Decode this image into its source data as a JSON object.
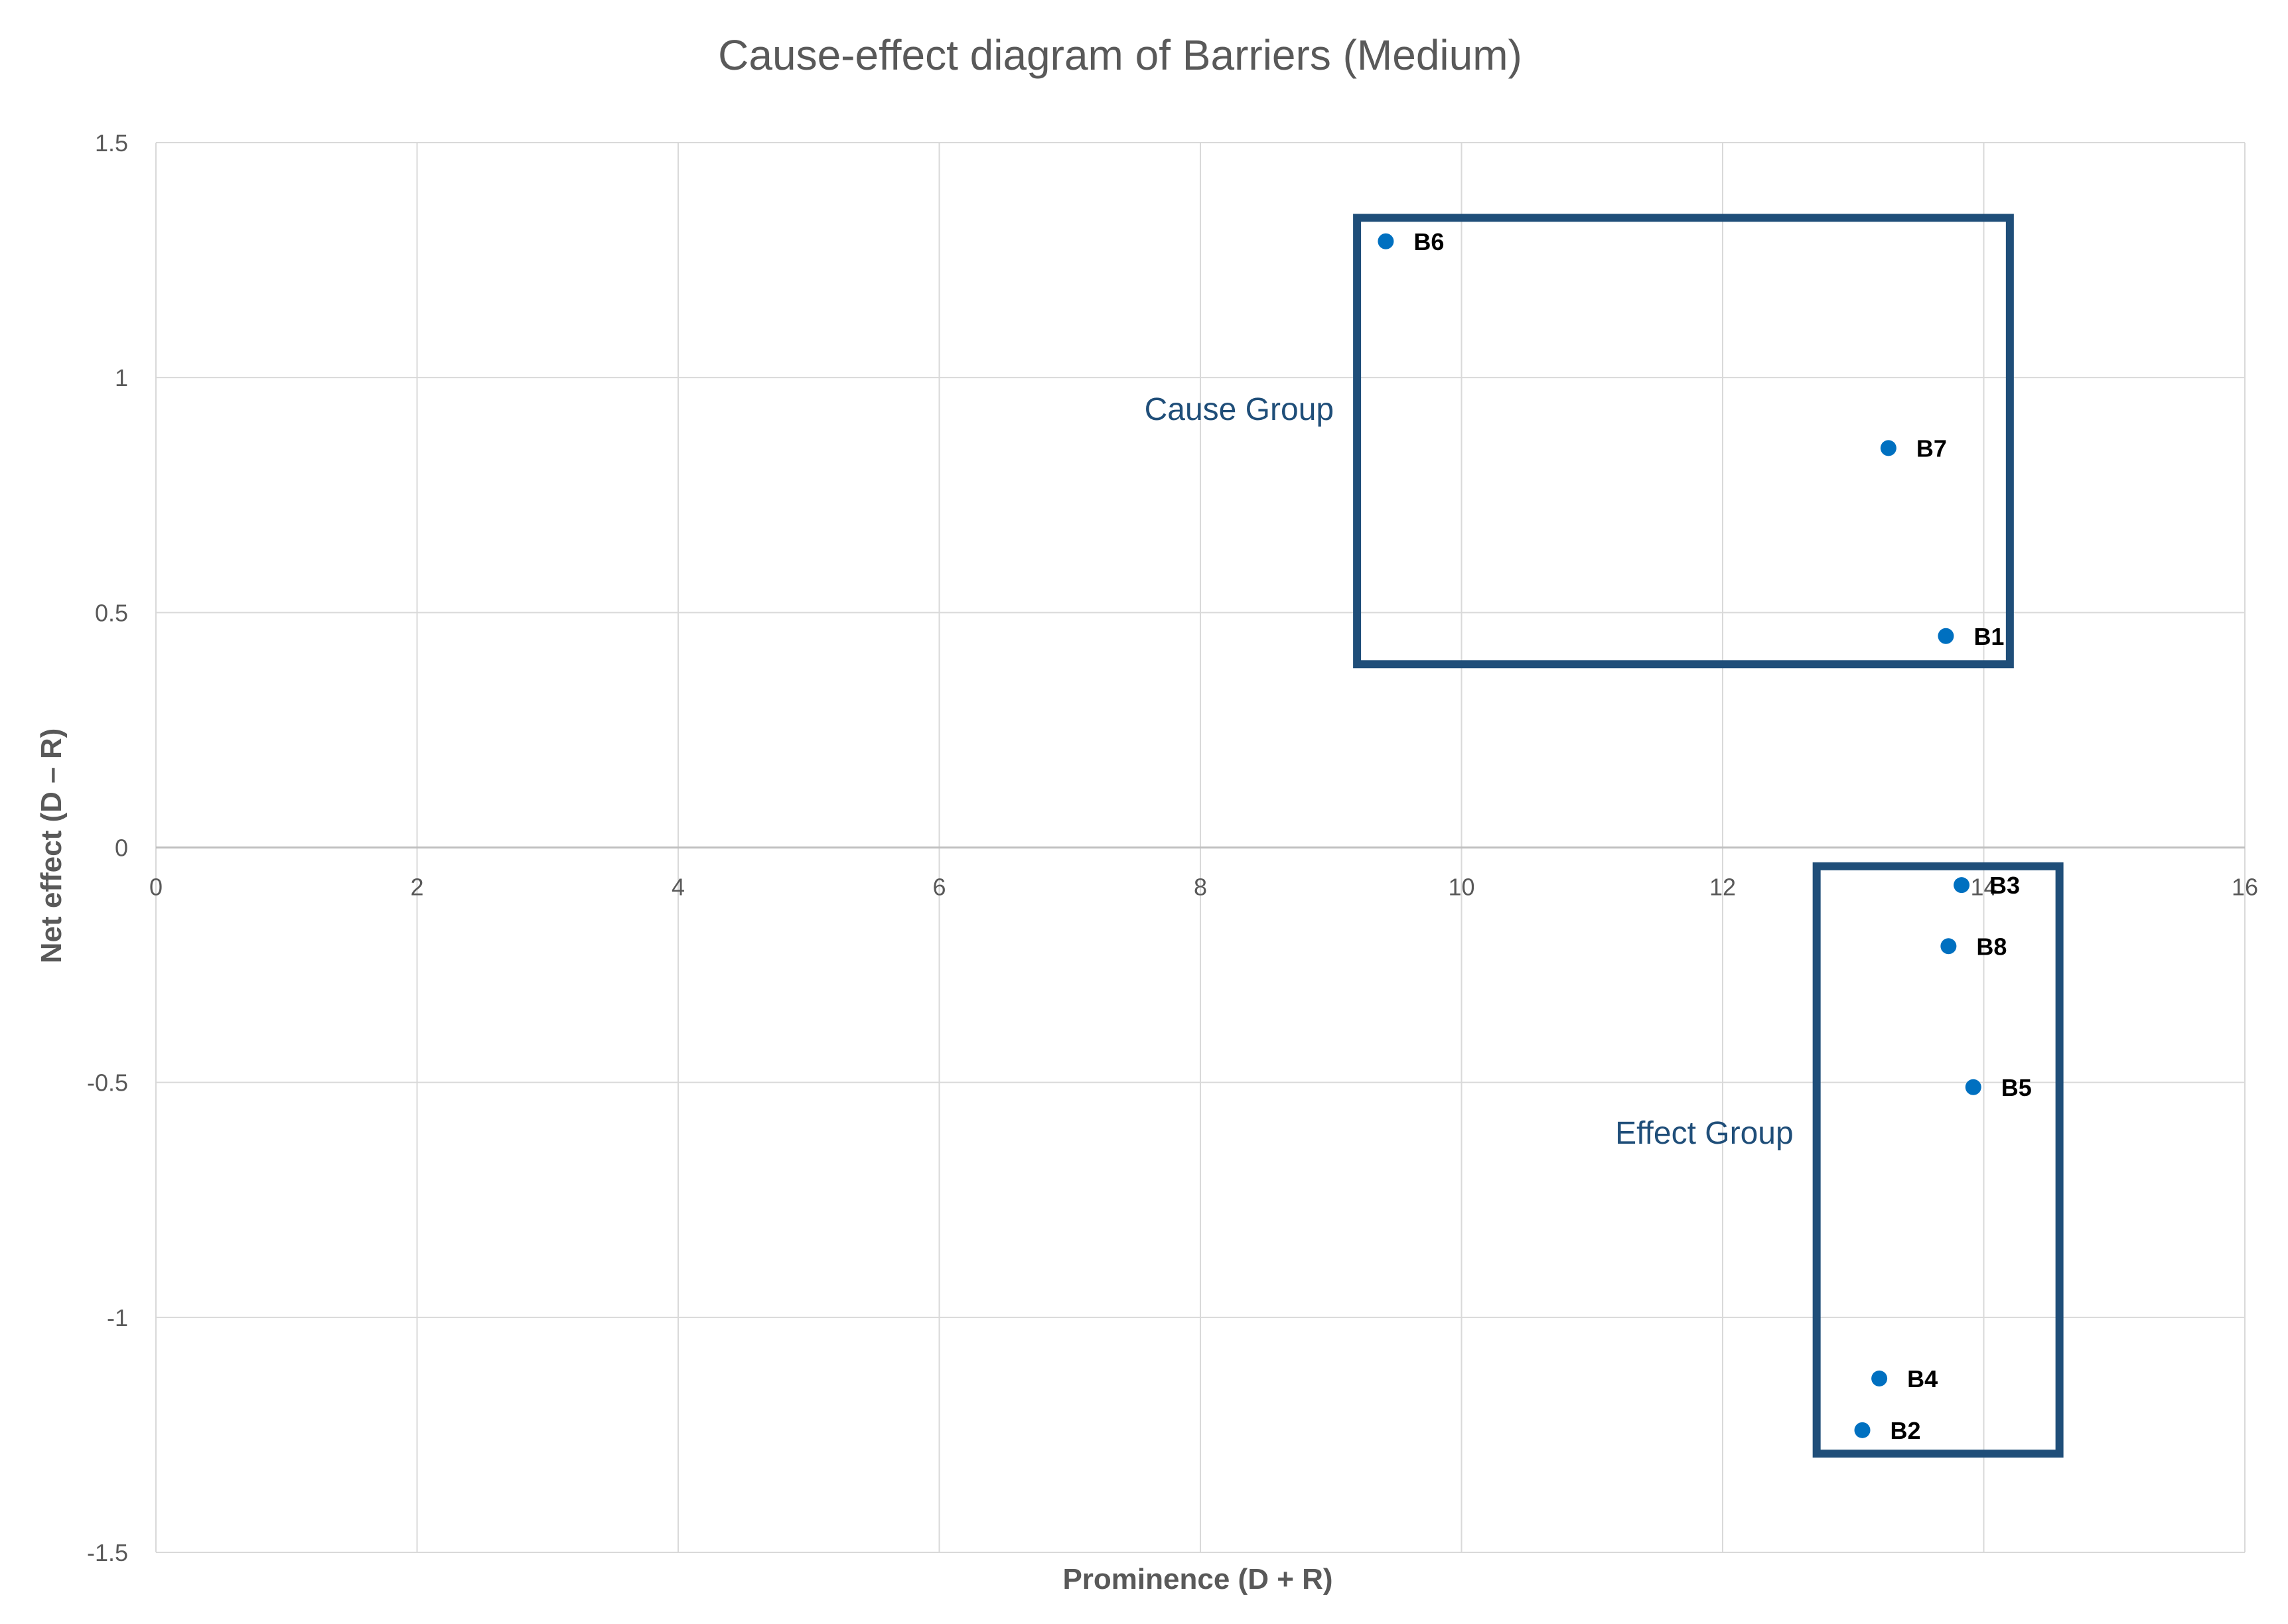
{
  "chart_data": {
    "type": "scatter",
    "title": "Cause-effect diagram of Barriers (Medium)",
    "xlabel": "Prominence (D + R)",
    "ylabel": "Net effect (D – R)",
    "xlim": [
      0,
      16
    ],
    "ylim": [
      -1.5,
      1.5
    ],
    "x_ticks": [
      "0",
      "2",
      "4",
      "6",
      "8",
      "10",
      "12",
      "14",
      "16"
    ],
    "y_ticks": [
      "1.5",
      "1",
      "0.5",
      "0",
      "-0.5",
      "-1",
      "-1.5"
    ],
    "grid": true,
    "marker_color": "#0070c0",
    "points": [
      {
        "label": "B6",
        "x": 9.42,
        "y": 1.29
      },
      {
        "label": "B7",
        "x": 13.27,
        "y": 0.85
      },
      {
        "label": "B1",
        "x": 13.71,
        "y": 0.45
      },
      {
        "label": "B3",
        "x": 13.83,
        "y": -0.08
      },
      {
        "label": "B8",
        "x": 13.73,
        "y": -0.21
      },
      {
        "label": "B5",
        "x": 13.92,
        "y": -0.51
      },
      {
        "label": "B4",
        "x": 13.2,
        "y": -1.13
      },
      {
        "label": "B2",
        "x": 13.07,
        "y": -1.24
      }
    ],
    "groups": [
      {
        "label": "Cause Group",
        "color": "#1f4e79",
        "x_range": [
          9.2,
          14.2
        ],
        "y_range": [
          0.39,
          1.34
        ]
      },
      {
        "label": "Effect Group",
        "color": "#1f4e79",
        "x_range": [
          12.72,
          14.58
        ],
        "y_range": [
          -1.29,
          -0.04
        ]
      }
    ]
  }
}
